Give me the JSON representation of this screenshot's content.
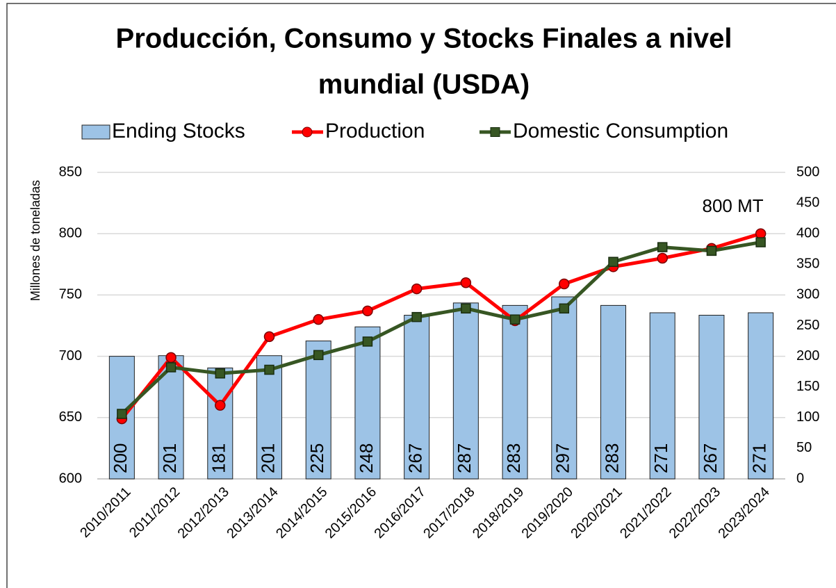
{
  "chart_data": {
    "type": "bar-line",
    "title": [
      "Producción, Consumo y Stocks Finales a nivel",
      "mundial (USDA)"
    ],
    "ylabel": "Millones de toneladas",
    "annotation": "800 MT",
    "categories": [
      "2010/2011",
      "2011/2012",
      "2012/2013",
      "2013/2014",
      "2014/2015",
      "2015/2016",
      "2016/2017",
      "2017/2018",
      "2018/2019",
      "2019/2020",
      "2020/2021",
      "2021/2022",
      "2022/2023",
      "2023/2024"
    ],
    "series": [
      {
        "name": "Ending Stocks",
        "type": "bar",
        "axis": "y2",
        "color": "#9dc3e6",
        "values": [
          200,
          201,
          181,
          201,
          225,
          248,
          267,
          287,
          283,
          297,
          283,
          271,
          267,
          271
        ]
      },
      {
        "name": "Production",
        "type": "line",
        "marker": "circle",
        "color": "#ff0000",
        "values": [
          649,
          699,
          660,
          716,
          730,
          737,
          755,
          760,
          729,
          759,
          773,
          780,
          788,
          800
        ]
      },
      {
        "name": "Domestic Consumption",
        "type": "line",
        "marker": "square",
        "color": "#375623",
        "values": [
          653,
          691,
          686,
          689,
          701,
          712,
          732,
          739,
          730,
          739,
          777,
          789,
          786,
          793
        ]
      }
    ],
    "ylim": [
      600,
      850
    ],
    "yticks": [
      600,
      650,
      700,
      750,
      800,
      850
    ],
    "y2lim": [
      0,
      500
    ],
    "y2ticks": [
      0,
      50,
      100,
      150,
      200,
      250,
      300,
      350,
      400,
      450,
      500
    ],
    "grid": true,
    "legend": "top"
  }
}
